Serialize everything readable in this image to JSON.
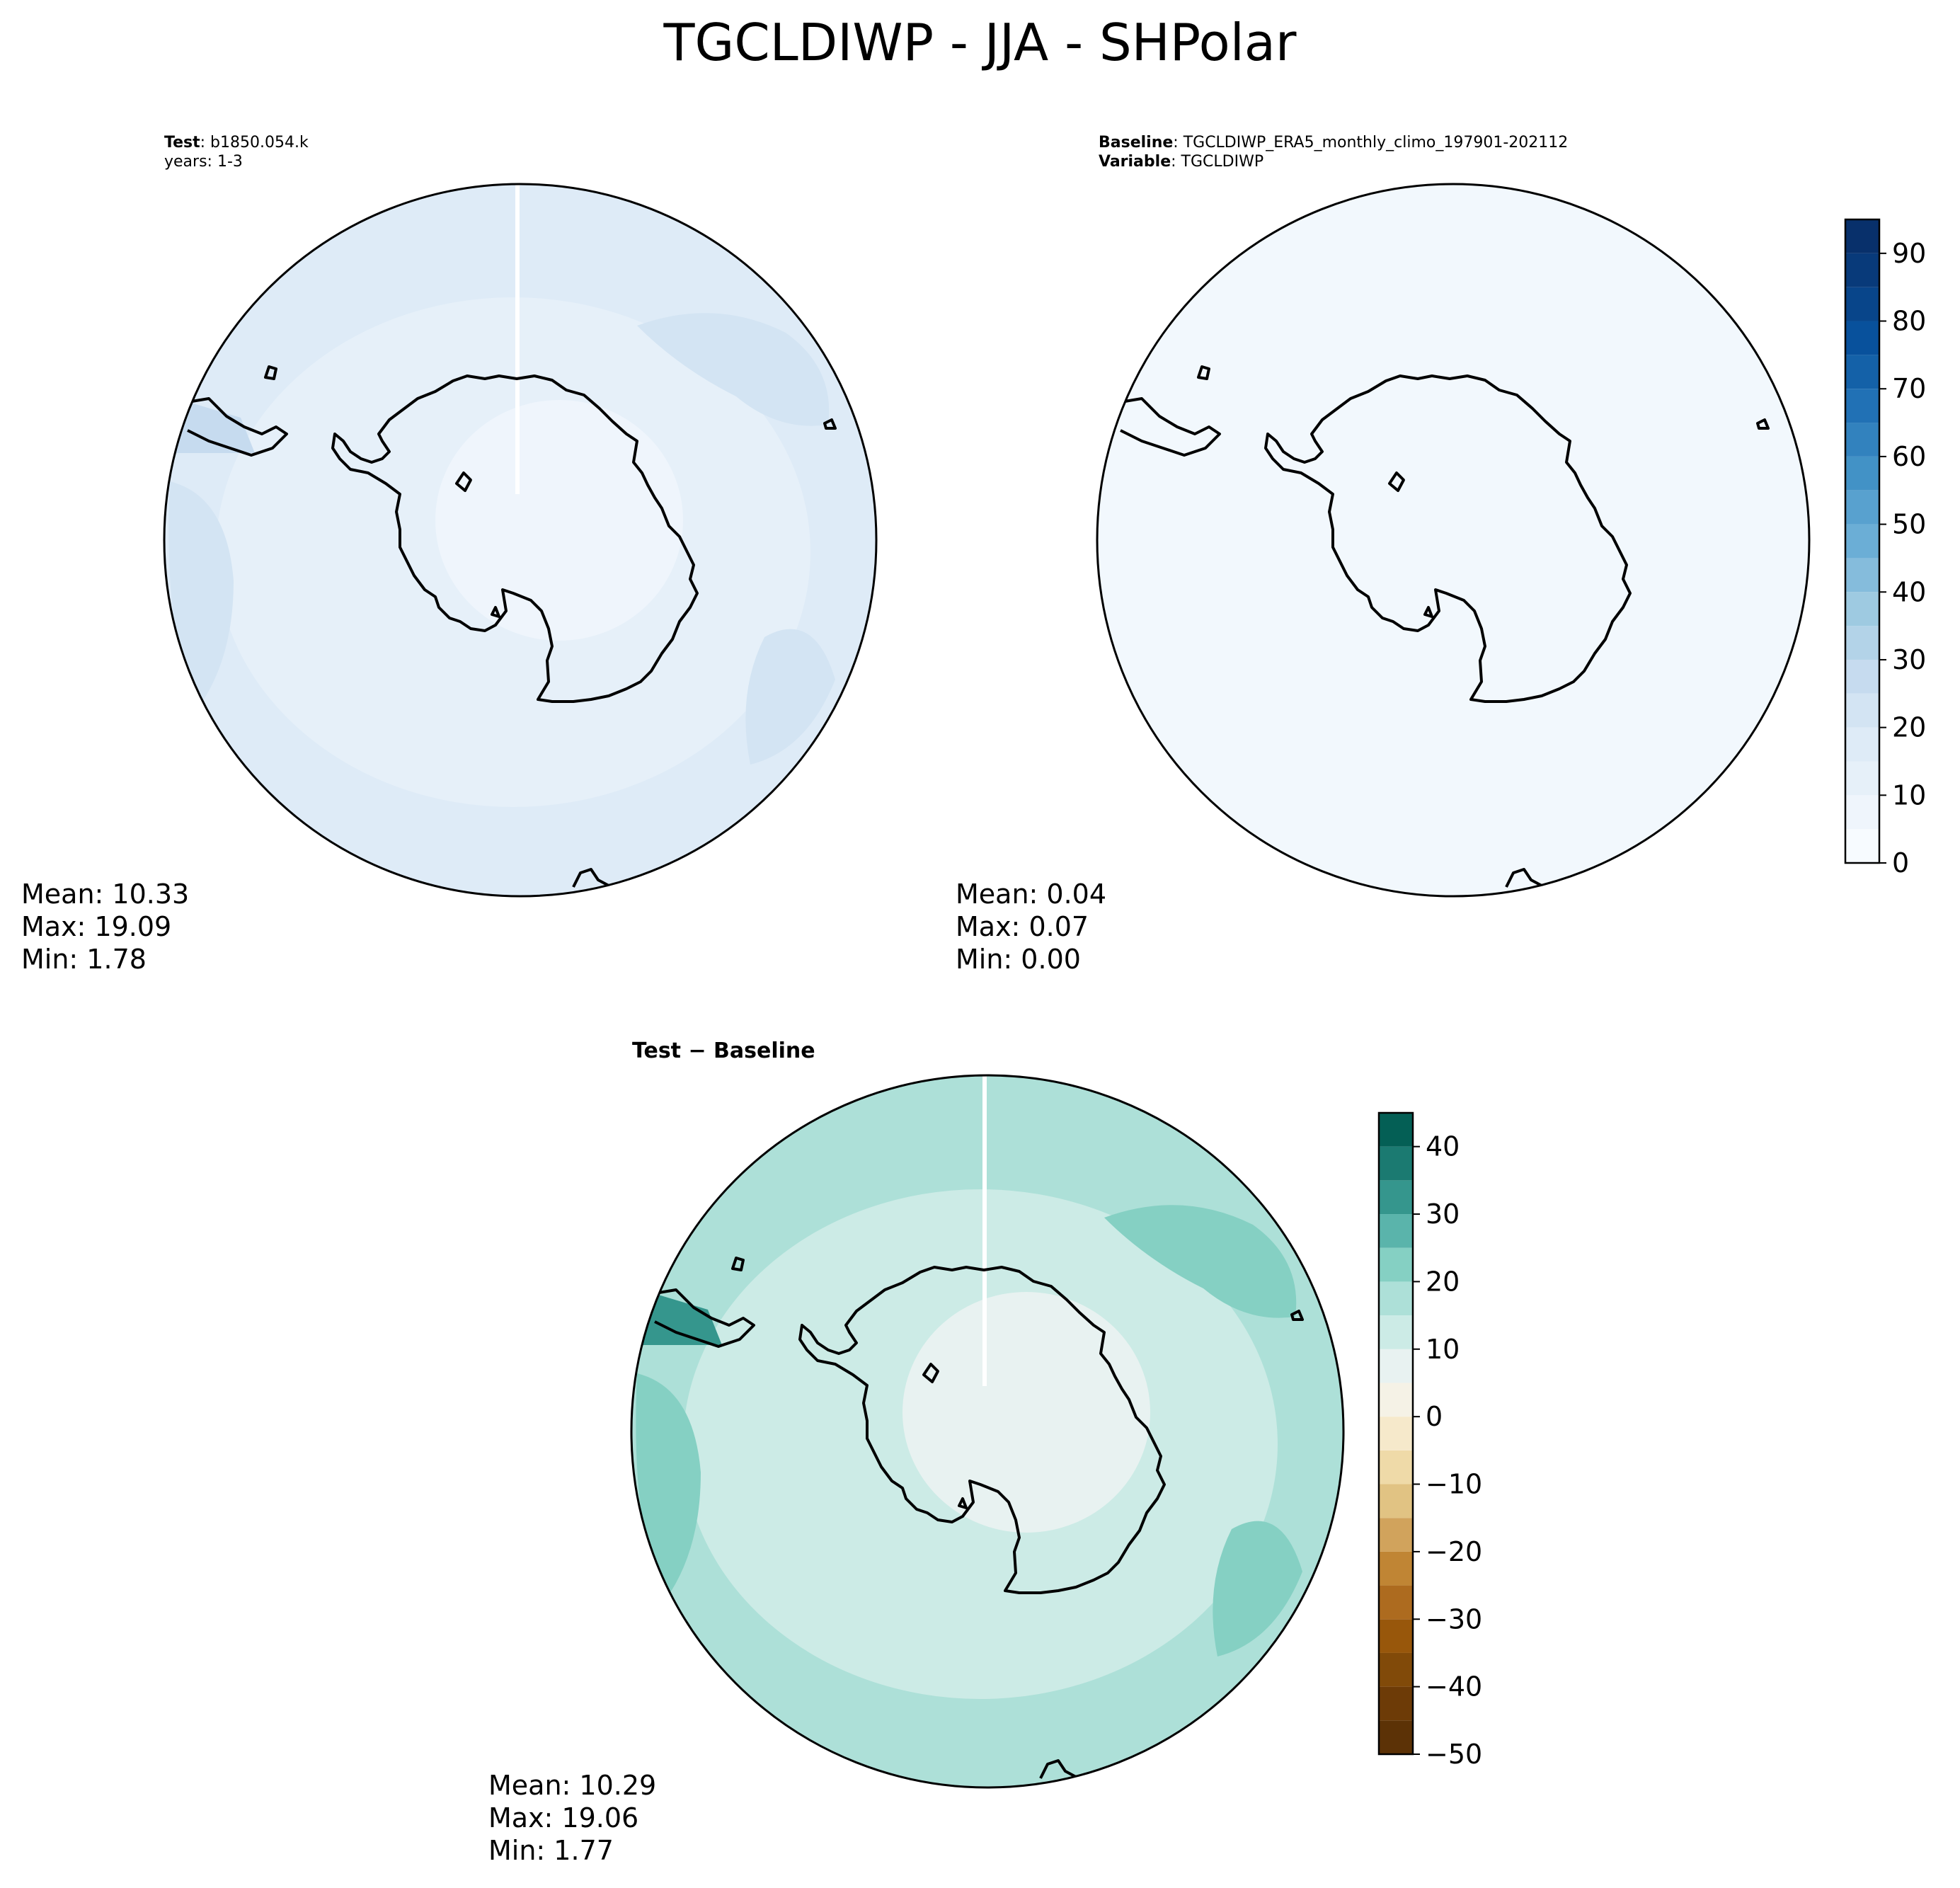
{
  "title": "TGCLDIWP - JJA - SHPolar",
  "panels": {
    "test": {
      "header_bold": "Test",
      "header_value": ": b1850.054.k",
      "header_line2": "years: 1-3",
      "stats": {
        "mean": "Mean: 10.33",
        "max": "Max: 19.09",
        "min": "Min:  1.78"
      }
    },
    "baseline": {
      "header_bold": "Baseline",
      "header_value": ": TGCLDIWP_ERA5_monthly_climo_197901-202112",
      "header_bold2": "Variable",
      "header_value2": ": TGCLDIWP",
      "stats": {
        "mean": "Mean:  0.04",
        "max": "Max:  0.07",
        "min": "Min:  0.00"
      }
    },
    "diff": {
      "header": "Test − Baseline",
      "stats": {
        "mean": "Mean: 10.29",
        "max": "Max: 19.06",
        "min": "Min:  1.77"
      }
    }
  },
  "colors": {
    "blues": [
      "#f7fbff",
      "#eff5fc",
      "#e6f0f9",
      "#deebf7",
      "#d3e4f3",
      "#c6dbef",
      "#b3d3e8",
      "#9ecae1",
      "#85bcdc",
      "#6baed6",
      "#58a1cf",
      "#4292c6",
      "#3282be",
      "#2171b5",
      "#1461a8",
      "#08519c",
      "#08458a",
      "#083a7a",
      "#08306b"
    ],
    "diverging": [
      "#5c3206",
      "#6d3b07",
      "#814a09",
      "#98570b",
      "#ad6b1f",
      "#c08534",
      "#d1a35c",
      "#e1c383",
      "#efdaa8",
      "#f6e9cb",
      "#f5f2e6",
      "#e8f2f1",
      "#ccebe6",
      "#ade0d8",
      "#85d0c3",
      "#5ab4ab",
      "#35968d",
      "#1b7a71",
      "#045f55",
      "#01473d"
    ],
    "test_fills": {
      "outer": "#deebf7",
      "ring": "#e6f0f9",
      "inner": "#eff5fc",
      "bands": "#d3e4f3",
      "peninsula": "#c6dbef"
    },
    "baseline_fill": "#f2f8fd",
    "diff_fills": {
      "outer": "#ade0d8",
      "ring": "#ccebe6",
      "inner": "#e8f2f1",
      "bands": "#85d0c3",
      "peninsula": "#35968d"
    }
  },
  "chart_data": [
    {
      "type": "heatmap",
      "title": "Test: b1850.054.k years: 1-3",
      "stats": {
        "mean": 10.33,
        "max": 19.09,
        "min": 1.78
      }
    },
    {
      "type": "heatmap",
      "title": "Baseline: TGCLDIWP_ERA5_monthly_climo_197901-202112 Variable: TGCLDIWP",
      "stats": {
        "mean": 0.04,
        "max": 0.07,
        "min": 0.0
      },
      "colorbar": {
        "range": [
          0,
          95
        ],
        "levels": [
          0,
          5,
          10,
          15,
          20,
          25,
          30,
          35,
          40,
          45,
          50,
          55,
          60,
          65,
          70,
          75,
          80,
          85,
          90,
          95
        ],
        "ticks": [
          0,
          10,
          20,
          30,
          40,
          50,
          60,
          70,
          80,
          90
        ]
      }
    },
    {
      "type": "heatmap",
      "title": "Test − Baseline",
      "stats": {
        "mean": 10.29,
        "max": 19.06,
        "min": 1.77
      },
      "colorbar": {
        "range": [
          -50,
          45
        ],
        "levels": [
          -50,
          -45,
          -40,
          -35,
          -30,
          -25,
          -20,
          -15,
          -10,
          -5,
          0,
          5,
          10,
          15,
          20,
          25,
          30,
          35,
          40,
          45
        ],
        "ticks": [
          -50,
          -40,
          -30,
          -20,
          -10,
          0,
          10,
          20,
          30,
          40
        ]
      }
    }
  ]
}
